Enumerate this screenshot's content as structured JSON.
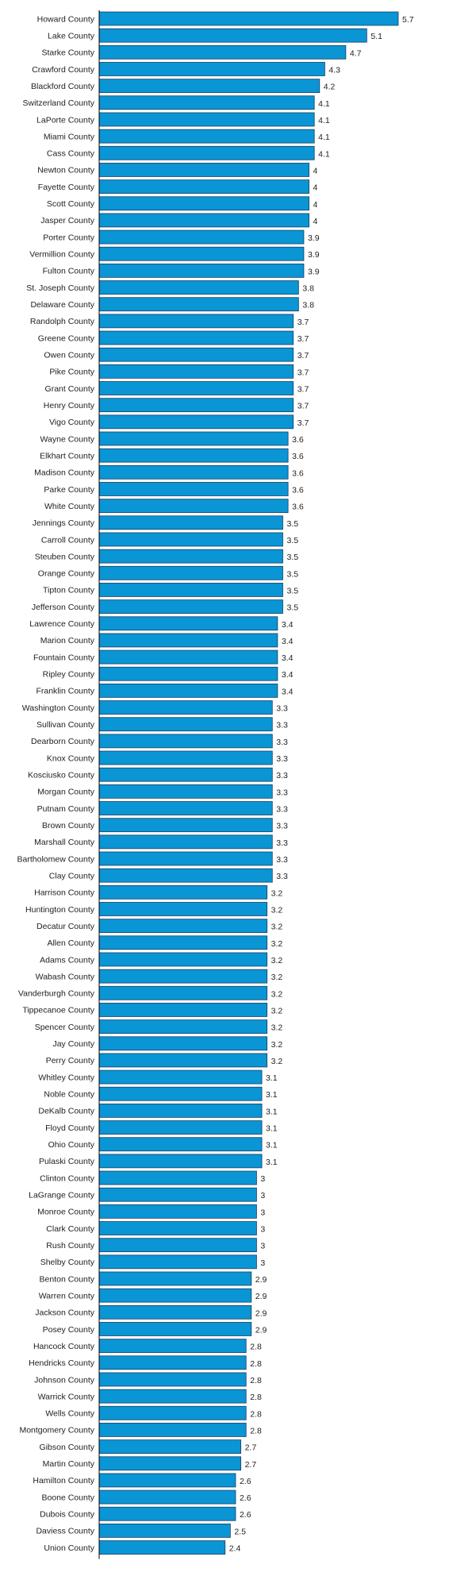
{
  "chart_data": {
    "type": "bar",
    "orientation": "horizontal",
    "bar_color": "#0a95d4",
    "bar_border_color": "#1a3f63",
    "axis_color": "#000000",
    "text_color": "#222222",
    "grid": false,
    "xlim": [
      0,
      5.7
    ],
    "categories": [
      "Howard County",
      "Lake County",
      "Starke County",
      "Crawford County",
      "Blackford County",
      "Switzerland County",
      "LaPorte County",
      "Miami County",
      "Cass County",
      "Newton County",
      "Fayette County",
      "Scott County",
      "Jasper County",
      "Porter County",
      "Vermillion County",
      "Fulton County",
      "St. Joseph County",
      "Delaware County",
      "Randolph County",
      "Greene County",
      "Owen County",
      "Pike County",
      "Grant County",
      "Henry County",
      "Vigo County",
      "Wayne County",
      "Elkhart County",
      "Madison County",
      "Parke County",
      "White County",
      "Jennings County",
      "Carroll County",
      "Steuben County",
      "Orange County",
      "Tipton County",
      "Jefferson County",
      "Lawrence County",
      "Marion County",
      "Fountain County",
      "Ripley County",
      "Franklin County",
      "Washington County",
      "Sullivan County",
      "Dearborn County",
      "Knox County",
      "Kosciusko County",
      "Morgan County",
      "Putnam County",
      "Brown County",
      "Marshall County",
      "Bartholomew County",
      "Clay County",
      "Harrison County",
      "Huntington County",
      "Decatur County",
      "Allen County",
      "Adams County",
      "Wabash County",
      "Vanderburgh County",
      "Tippecanoe County",
      "Spencer County",
      "Jay County",
      "Perry County",
      "Whitley County",
      "Noble County",
      "DeKalb County",
      "Floyd County",
      "Ohio County",
      "Pulaski County",
      "Clinton County",
      "LaGrange County",
      "Monroe County",
      "Clark County",
      "Rush County",
      "Shelby County",
      "Benton County",
      "Warren County",
      "Jackson County",
      "Posey County",
      "Hancock County",
      "Hendricks County",
      "Johnson County",
      "Warrick County",
      "Wells County",
      "Montgomery County",
      "Gibson County",
      "Martin County",
      "Hamilton County",
      "Boone County",
      "Dubois County",
      "Daviess County",
      "Union County"
    ],
    "values": [
      5.7,
      5.1,
      4.7,
      4.3,
      4.2,
      4.1,
      4.1,
      4.1,
      4.1,
      4,
      4,
      4,
      4,
      3.9,
      3.9,
      3.9,
      3.8,
      3.8,
      3.7,
      3.7,
      3.7,
      3.7,
      3.7,
      3.7,
      3.7,
      3.6,
      3.6,
      3.6,
      3.6,
      3.6,
      3.5,
      3.5,
      3.5,
      3.5,
      3.5,
      3.5,
      3.4,
      3.4,
      3.4,
      3.4,
      3.4,
      3.3,
      3.3,
      3.3,
      3.3,
      3.3,
      3.3,
      3.3,
      3.3,
      3.3,
      3.3,
      3.3,
      3.2,
      3.2,
      3.2,
      3.2,
      3.2,
      3.2,
      3.2,
      3.2,
      3.2,
      3.2,
      3.2,
      3.1,
      3.1,
      3.1,
      3.1,
      3.1,
      3.1,
      3,
      3,
      3,
      3,
      3,
      3,
      2.9,
      2.9,
      2.9,
      2.9,
      2.8,
      2.8,
      2.8,
      2.8,
      2.8,
      2.8,
      2.7,
      2.7,
      2.6,
      2.6,
      2.6,
      2.5,
      2.4
    ]
  }
}
